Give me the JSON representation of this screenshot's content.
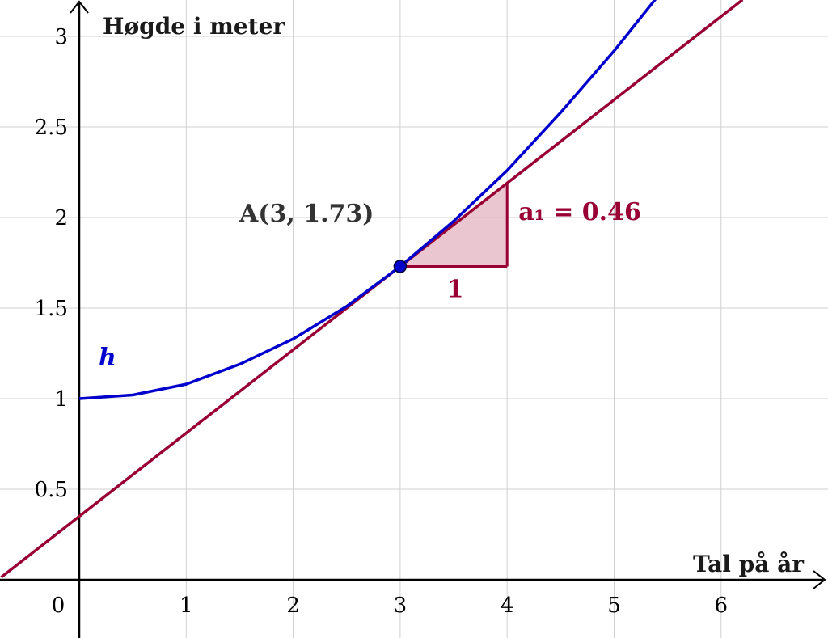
{
  "chart_data": {
    "type": "line",
    "xlabel": "Tal på år",
    "ylabel": "Høgde i meter",
    "xlim": [
      -0.73,
      6.93
    ],
    "ylim": [
      -0.63,
      3.2
    ],
    "grid": true,
    "x_ticks": [
      "1",
      "2",
      "3",
      "4",
      "5",
      "6"
    ],
    "y_ticks": [
      "0.5",
      "1",
      "1.5",
      "2",
      "2.5",
      "3"
    ],
    "origin_label": "0",
    "series": [
      {
        "name": "h",
        "color": "#0000cc",
        "x": [
          0,
          0.5,
          1,
          1.5,
          2,
          2.5,
          3,
          3.5,
          4,
          4.5,
          5,
          5.5
        ],
        "y": [
          1.0,
          1.02,
          1.08,
          1.19,
          1.33,
          1.51,
          1.73,
          1.98,
          2.26,
          2.58,
          2.92,
          3.29
        ]
      },
      {
        "name": "tangent",
        "color": "#990033",
        "slope": 0.46,
        "point": [
          3,
          1.73
        ]
      }
    ],
    "point": {
      "label": "A(3, 1.73)",
      "x": 3,
      "y": 1.73,
      "color": "#0000cc"
    },
    "slope_triangle": {
      "run": 1,
      "rise": 0.46,
      "run_label": "1",
      "rise_label": "a₁ = 0.46",
      "color": "#990033",
      "fill": "#e6bcc8"
    }
  }
}
